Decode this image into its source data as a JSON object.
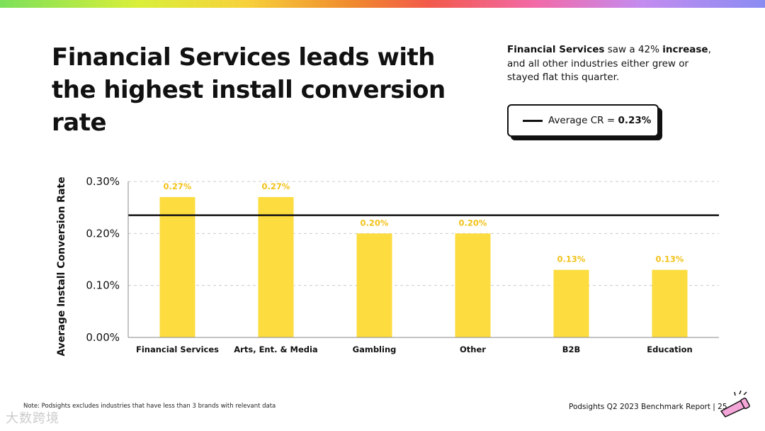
{
  "header": {
    "title_bold": "Financial Services",
    "title_rest": " leads with the highest install conversion rate"
  },
  "summary": {
    "bold1": "Financial Services",
    "mid": " saw a 42% ",
    "bold2": "increase",
    "rest": ", and all other industries either grew or stayed flat this quarter."
  },
  "legend": {
    "label": "Average CR = ",
    "value": "0.23%"
  },
  "colors": {
    "bar": "#fcdc3f",
    "data_label": "#f2c21a",
    "average_line": "#111111",
    "grid": "#cccccc"
  },
  "chart_data": {
    "type": "bar",
    "title": "",
    "xlabel": "",
    "ylabel": "Average Install Conversion Rate",
    "categories": [
      "Financial Services",
      "Arts, Ent. & Media",
      "Gambling",
      "Other",
      "B2B",
      "Education"
    ],
    "values": [
      0.27,
      0.27,
      0.2,
      0.2,
      0.13,
      0.13
    ],
    "data_labels": [
      "0.27%",
      "0.27%",
      "0.20%",
      "0.20%",
      "0.13%",
      "0.13%"
    ],
    "ylim": [
      0,
      0.3
    ],
    "yticks": [
      0,
      0.1,
      0.2,
      0.3
    ],
    "ytick_labels": [
      "0.00%",
      "0.10%",
      "0.20%",
      "0.30%"
    ],
    "average": 0.235,
    "grid": true,
    "grid_style": "dashed"
  },
  "footer": {
    "note": "Note: Podsights excludes industries that have less than 3 brands with relevant data",
    "report": "Podsights Q2 2023 Benchmark Report | 25",
    "watermark": "大数跨境"
  },
  "icons": {
    "mascot": "megaphone-icon"
  }
}
